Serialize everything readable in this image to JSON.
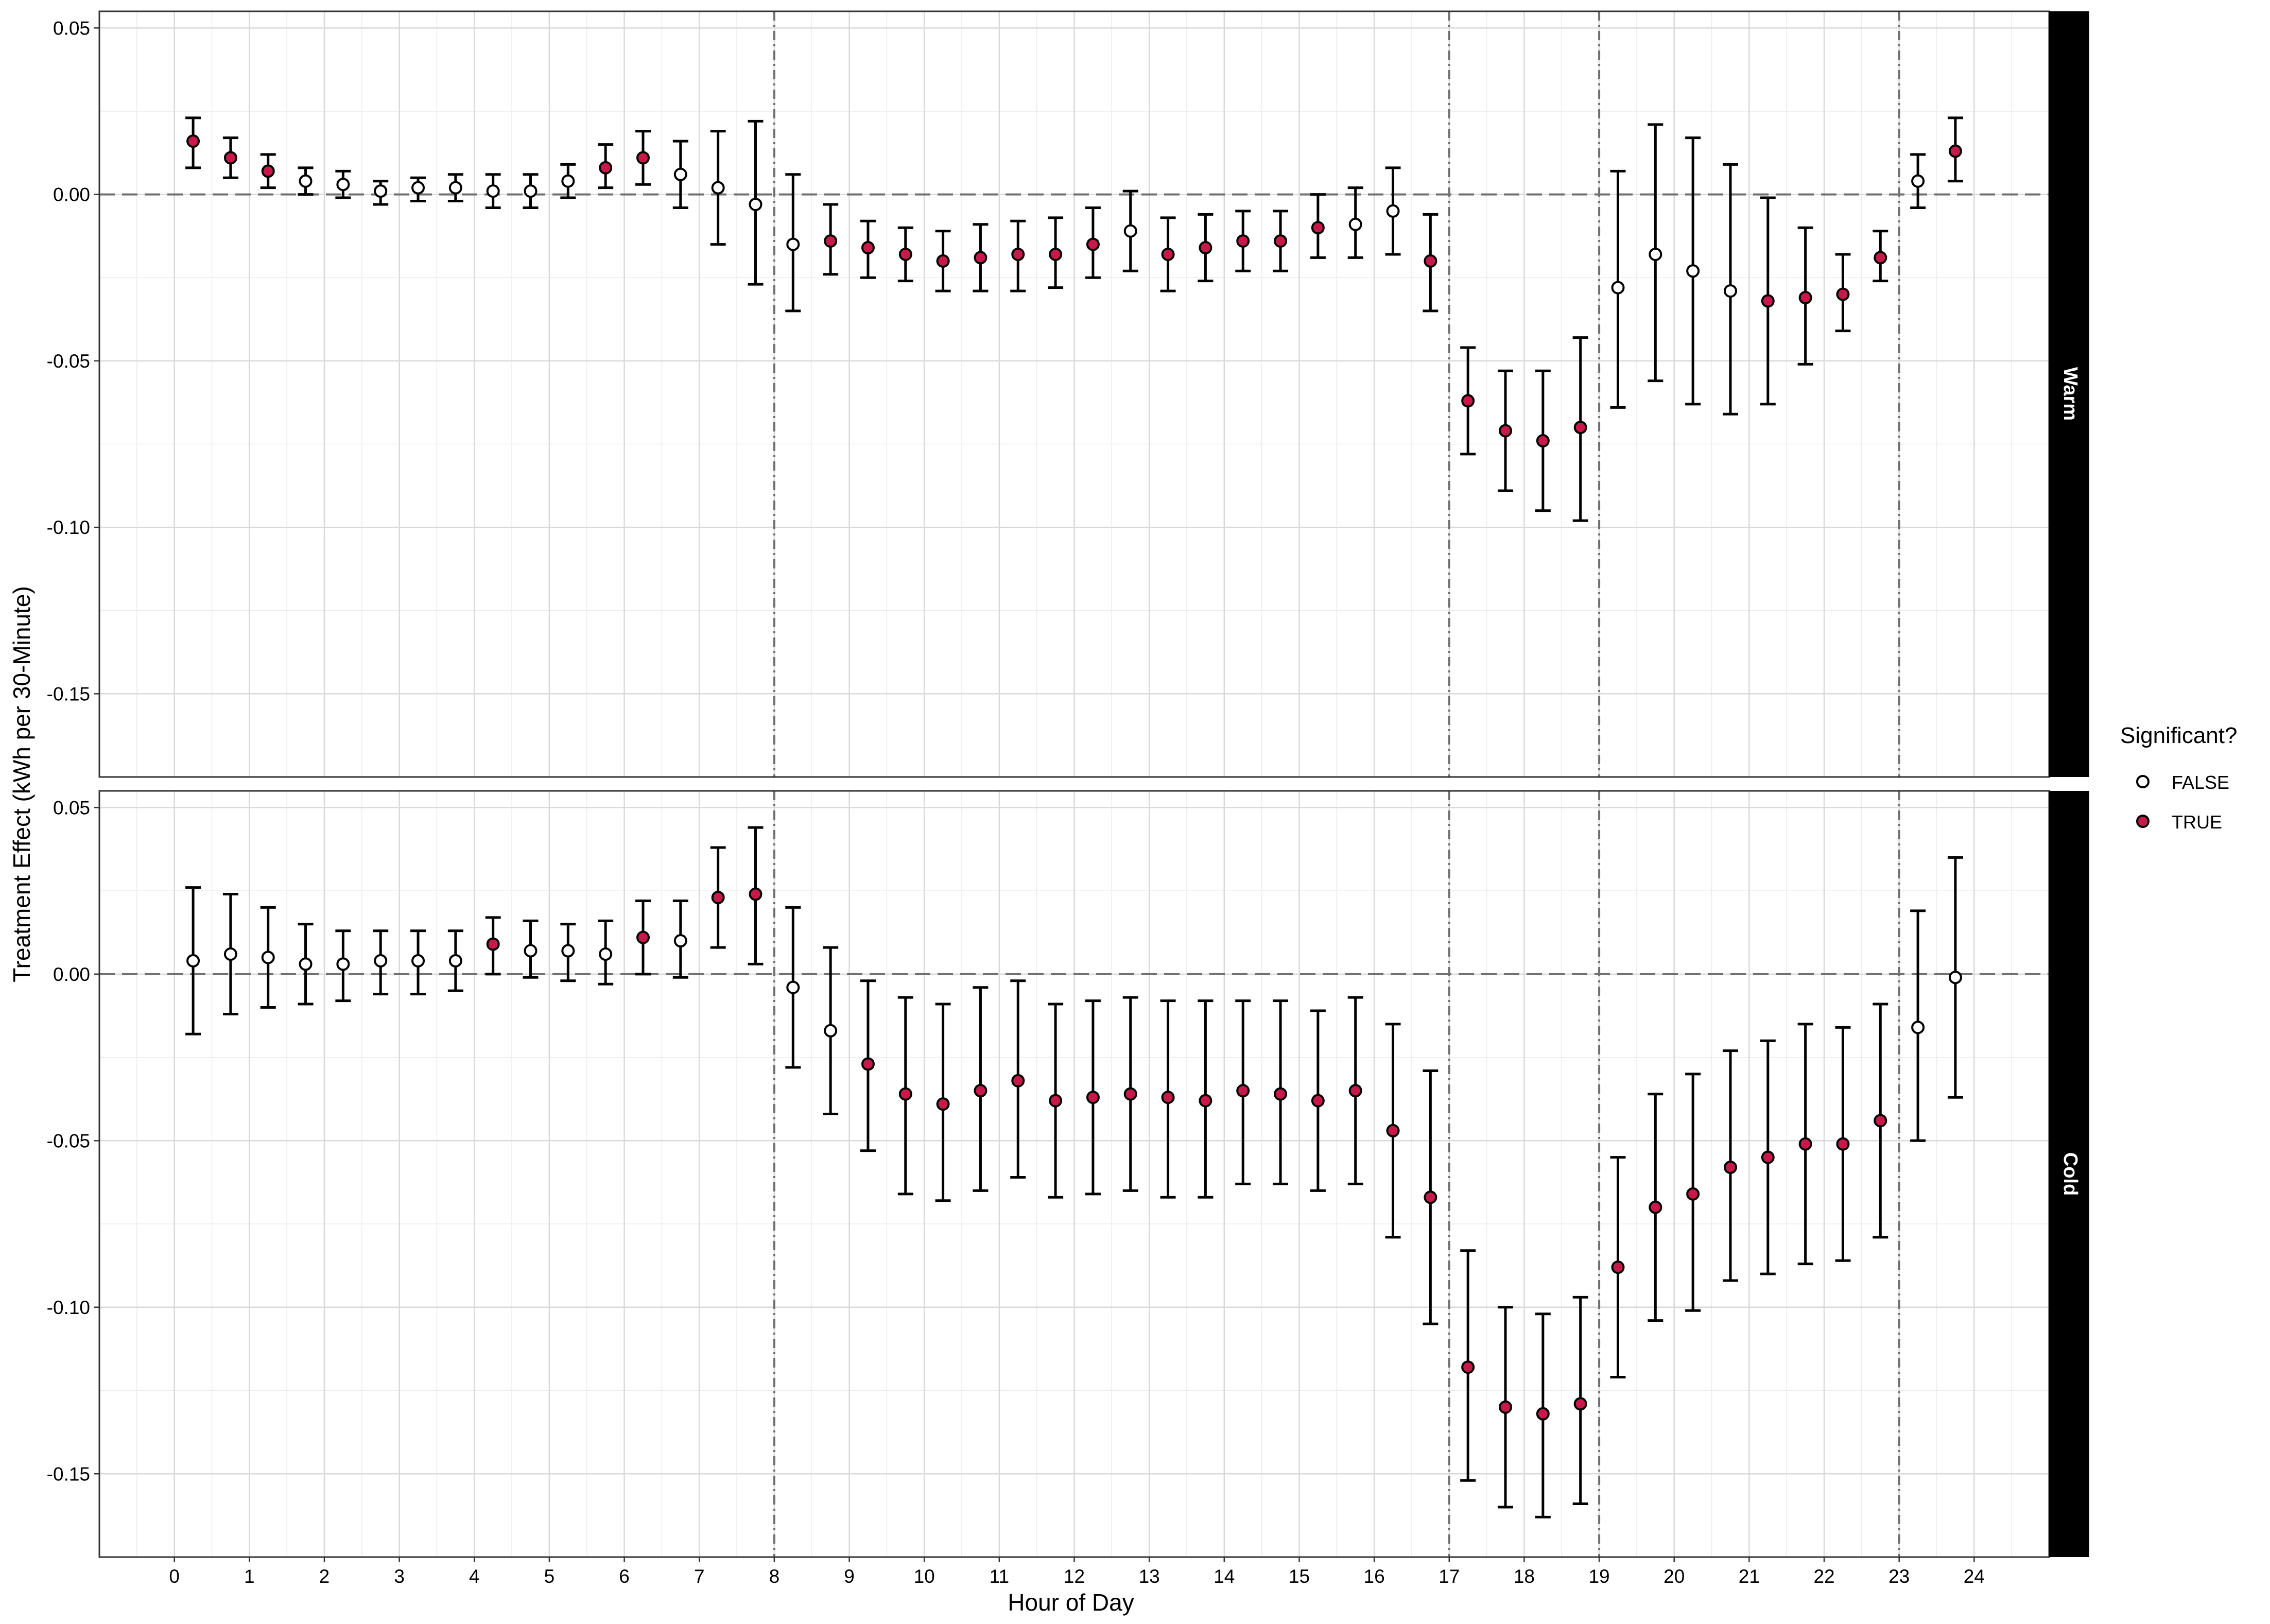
{
  "chart_data": {
    "type": "scatter",
    "subtype": "point-range (faceted)",
    "xlabel": "Hour of Day",
    "ylabel": "Treatment Effect  (kWh per 30-Minute)",
    "x_ticks": [
      "0",
      "1",
      "2",
      "3",
      "4",
      "5",
      "6",
      "7",
      "8",
      "9",
      "10",
      "11",
      "12",
      "13",
      "14",
      "15",
      "16",
      "17",
      "18",
      "19",
      "20",
      "21",
      "22",
      "23",
      "24"
    ],
    "xlim": [
      -1,
      25
    ],
    "ylim": [
      -0.175,
      0.055
    ],
    "y_ticks": [
      0.05,
      0.0,
      -0.05,
      -0.1,
      -0.15
    ],
    "y_tick_labels": [
      "0.05",
      "0.00",
      "-0.05",
      "-0.10",
      "-0.15"
    ],
    "reference_hline": 0,
    "reference_vlines": [
      8,
      17,
      19,
      23
    ],
    "grid": true,
    "legend": {
      "title": "Significant?",
      "position": "right",
      "items": [
        {
          "label": "FALSE",
          "fill": "#ffffff"
        },
        {
          "label": "TRUE",
          "fill": "#c8194a"
        }
      ]
    },
    "colors": {
      "significant": "#c8194a",
      "not_significant": "#ffffff",
      "strip": "#000000",
      "reference_line": "#707070"
    },
    "panels": [
      {
        "strip_label": "Warm",
        "points": [
          {
            "x": 0.25,
            "y": 0.016,
            "lo": 0.008,
            "hi": 0.023,
            "sig": true
          },
          {
            "x": 0.75,
            "y": 0.011,
            "lo": 0.005,
            "hi": 0.017,
            "sig": true
          },
          {
            "x": 1.25,
            "y": 0.007,
            "lo": 0.002,
            "hi": 0.012,
            "sig": true
          },
          {
            "x": 1.75,
            "y": 0.004,
            "lo": 0.0,
            "hi": 0.008,
            "sig": false
          },
          {
            "x": 2.25,
            "y": 0.003,
            "lo": -0.001,
            "hi": 0.007,
            "sig": false
          },
          {
            "x": 2.75,
            "y": 0.001,
            "lo": -0.003,
            "hi": 0.004,
            "sig": false
          },
          {
            "x": 3.25,
            "y": 0.002,
            "lo": -0.002,
            "hi": 0.005,
            "sig": false
          },
          {
            "x": 3.75,
            "y": 0.002,
            "lo": -0.002,
            "hi": 0.006,
            "sig": false
          },
          {
            "x": 4.25,
            "y": 0.001,
            "lo": -0.004,
            "hi": 0.006,
            "sig": false
          },
          {
            "x": 4.75,
            "y": 0.001,
            "lo": -0.004,
            "hi": 0.006,
            "sig": false
          },
          {
            "x": 5.25,
            "y": 0.004,
            "lo": -0.001,
            "hi": 0.009,
            "sig": false
          },
          {
            "x": 5.75,
            "y": 0.008,
            "lo": 0.002,
            "hi": 0.015,
            "sig": true
          },
          {
            "x": 6.25,
            "y": 0.011,
            "lo": 0.003,
            "hi": 0.019,
            "sig": true
          },
          {
            "x": 6.75,
            "y": 0.006,
            "lo": -0.004,
            "hi": 0.016,
            "sig": false
          },
          {
            "x": 7.25,
            "y": 0.002,
            "lo": -0.015,
            "hi": 0.019,
            "sig": false
          },
          {
            "x": 7.75,
            "y": -0.003,
            "lo": -0.027,
            "hi": 0.022,
            "sig": false
          },
          {
            "x": 8.25,
            "y": -0.015,
            "lo": -0.035,
            "hi": 0.006,
            "sig": false
          },
          {
            "x": 8.75,
            "y": -0.014,
            "lo": -0.024,
            "hi": -0.003,
            "sig": true
          },
          {
            "x": 9.25,
            "y": -0.016,
            "lo": -0.025,
            "hi": -0.008,
            "sig": true
          },
          {
            "x": 9.75,
            "y": -0.018,
            "lo": -0.026,
            "hi": -0.01,
            "sig": true
          },
          {
            "x": 10.25,
            "y": -0.02,
            "lo": -0.029,
            "hi": -0.011,
            "sig": true
          },
          {
            "x": 10.75,
            "y": -0.019,
            "lo": -0.029,
            "hi": -0.009,
            "sig": true
          },
          {
            "x": 11.25,
            "y": -0.018,
            "lo": -0.029,
            "hi": -0.008,
            "sig": true
          },
          {
            "x": 11.75,
            "y": -0.018,
            "lo": -0.028,
            "hi": -0.007,
            "sig": true
          },
          {
            "x": 12.25,
            "y": -0.015,
            "lo": -0.025,
            "hi": -0.004,
            "sig": true
          },
          {
            "x": 12.75,
            "y": -0.011,
            "lo": -0.023,
            "hi": 0.001,
            "sig": false
          },
          {
            "x": 13.25,
            "y": -0.018,
            "lo": -0.029,
            "hi": -0.007,
            "sig": true
          },
          {
            "x": 13.75,
            "y": -0.016,
            "lo": -0.026,
            "hi": -0.006,
            "sig": true
          },
          {
            "x": 14.25,
            "y": -0.014,
            "lo": -0.023,
            "hi": -0.005,
            "sig": true
          },
          {
            "x": 14.75,
            "y": -0.014,
            "lo": -0.023,
            "hi": -0.005,
            "sig": true
          },
          {
            "x": 15.25,
            "y": -0.01,
            "lo": -0.019,
            "hi": 0.0,
            "sig": true
          },
          {
            "x": 15.75,
            "y": -0.009,
            "lo": -0.019,
            "hi": 0.002,
            "sig": false
          },
          {
            "x": 16.25,
            "y": -0.005,
            "lo": -0.018,
            "hi": 0.008,
            "sig": false
          },
          {
            "x": 16.75,
            "y": -0.02,
            "lo": -0.035,
            "hi": -0.006,
            "sig": true
          },
          {
            "x": 17.25,
            "y": -0.062,
            "lo": -0.078,
            "hi": -0.046,
            "sig": true
          },
          {
            "x": 17.75,
            "y": -0.071,
            "lo": -0.089,
            "hi": -0.053,
            "sig": true
          },
          {
            "x": 18.25,
            "y": -0.074,
            "lo": -0.095,
            "hi": -0.053,
            "sig": true
          },
          {
            "x": 18.75,
            "y": -0.07,
            "lo": -0.098,
            "hi": -0.043,
            "sig": true
          },
          {
            "x": 19.25,
            "y": -0.028,
            "lo": -0.064,
            "hi": 0.007,
            "sig": false
          },
          {
            "x": 19.75,
            "y": -0.018,
            "lo": -0.056,
            "hi": 0.021,
            "sig": false
          },
          {
            "x": 20.25,
            "y": -0.023,
            "lo": -0.063,
            "hi": 0.017,
            "sig": false
          },
          {
            "x": 20.75,
            "y": -0.029,
            "lo": -0.066,
            "hi": 0.009,
            "sig": false
          },
          {
            "x": 21.25,
            "y": -0.032,
            "lo": -0.063,
            "hi": -0.001,
            "sig": true
          },
          {
            "x": 21.75,
            "y": -0.031,
            "lo": -0.051,
            "hi": -0.01,
            "sig": true
          },
          {
            "x": 22.25,
            "y": -0.03,
            "lo": -0.041,
            "hi": -0.018,
            "sig": true
          },
          {
            "x": 22.75,
            "y": -0.019,
            "lo": -0.026,
            "hi": -0.011,
            "sig": true
          },
          {
            "x": 23.25,
            "y": 0.004,
            "lo": -0.004,
            "hi": 0.012,
            "sig": false
          },
          {
            "x": 23.75,
            "y": 0.013,
            "lo": 0.004,
            "hi": 0.023,
            "sig": true
          }
        ]
      },
      {
        "strip_label": "Cold",
        "points": [
          {
            "x": 0.25,
            "y": 0.004,
            "lo": -0.018,
            "hi": 0.026,
            "sig": false
          },
          {
            "x": 0.75,
            "y": 0.006,
            "lo": -0.012,
            "hi": 0.024,
            "sig": false
          },
          {
            "x": 1.25,
            "y": 0.005,
            "lo": -0.01,
            "hi": 0.02,
            "sig": false
          },
          {
            "x": 1.75,
            "y": 0.003,
            "lo": -0.009,
            "hi": 0.015,
            "sig": false
          },
          {
            "x": 2.25,
            "y": 0.003,
            "lo": -0.008,
            "hi": 0.013,
            "sig": false
          },
          {
            "x": 2.75,
            "y": 0.004,
            "lo": -0.006,
            "hi": 0.013,
            "sig": false
          },
          {
            "x": 3.25,
            "y": 0.004,
            "lo": -0.006,
            "hi": 0.013,
            "sig": false
          },
          {
            "x": 3.75,
            "y": 0.004,
            "lo": -0.005,
            "hi": 0.013,
            "sig": false
          },
          {
            "x": 4.25,
            "y": 0.009,
            "lo": 0.0,
            "hi": 0.017,
            "sig": true
          },
          {
            "x": 4.75,
            "y": 0.007,
            "lo": -0.001,
            "hi": 0.016,
            "sig": false
          },
          {
            "x": 5.25,
            "y": 0.007,
            "lo": -0.002,
            "hi": 0.015,
            "sig": false
          },
          {
            "x": 5.75,
            "y": 0.006,
            "lo": -0.003,
            "hi": 0.016,
            "sig": false
          },
          {
            "x": 6.25,
            "y": 0.011,
            "lo": 0.0,
            "hi": 0.022,
            "sig": true
          },
          {
            "x": 6.75,
            "y": 0.01,
            "lo": -0.001,
            "hi": 0.022,
            "sig": false
          },
          {
            "x": 7.25,
            "y": 0.023,
            "lo": 0.008,
            "hi": 0.038,
            "sig": true
          },
          {
            "x": 7.75,
            "y": 0.024,
            "lo": 0.003,
            "hi": 0.044,
            "sig": true
          },
          {
            "x": 8.25,
            "y": -0.004,
            "lo": -0.028,
            "hi": 0.02,
            "sig": false
          },
          {
            "x": 8.75,
            "y": -0.017,
            "lo": -0.042,
            "hi": 0.008,
            "sig": false
          },
          {
            "x": 9.25,
            "y": -0.027,
            "lo": -0.053,
            "hi": -0.002,
            "sig": true
          },
          {
            "x": 9.75,
            "y": -0.036,
            "lo": -0.066,
            "hi": -0.007,
            "sig": true
          },
          {
            "x": 10.25,
            "y": -0.039,
            "lo": -0.068,
            "hi": -0.009,
            "sig": true
          },
          {
            "x": 10.75,
            "y": -0.035,
            "lo": -0.065,
            "hi": -0.004,
            "sig": true
          },
          {
            "x": 11.25,
            "y": -0.032,
            "lo": -0.061,
            "hi": -0.002,
            "sig": true
          },
          {
            "x": 11.75,
            "y": -0.038,
            "lo": -0.067,
            "hi": -0.009,
            "sig": true
          },
          {
            "x": 12.25,
            "y": -0.037,
            "lo": -0.066,
            "hi": -0.008,
            "sig": true
          },
          {
            "x": 12.75,
            "y": -0.036,
            "lo": -0.065,
            "hi": -0.007,
            "sig": true
          },
          {
            "x": 13.25,
            "y": -0.037,
            "lo": -0.067,
            "hi": -0.008,
            "sig": true
          },
          {
            "x": 13.75,
            "y": -0.038,
            "lo": -0.067,
            "hi": -0.008,
            "sig": true
          },
          {
            "x": 14.25,
            "y": -0.035,
            "lo": -0.063,
            "hi": -0.008,
            "sig": true
          },
          {
            "x": 14.75,
            "y": -0.036,
            "lo": -0.063,
            "hi": -0.008,
            "sig": true
          },
          {
            "x": 15.25,
            "y": -0.038,
            "lo": -0.065,
            "hi": -0.011,
            "sig": true
          },
          {
            "x": 15.75,
            "y": -0.035,
            "lo": -0.063,
            "hi": -0.007,
            "sig": true
          },
          {
            "x": 16.25,
            "y": -0.047,
            "lo": -0.079,
            "hi": -0.015,
            "sig": true
          },
          {
            "x": 16.75,
            "y": -0.067,
            "lo": -0.105,
            "hi": -0.029,
            "sig": true
          },
          {
            "x": 17.25,
            "y": -0.118,
            "lo": -0.152,
            "hi": -0.083,
            "sig": true
          },
          {
            "x": 17.75,
            "y": -0.13,
            "lo": -0.16,
            "hi": -0.1,
            "sig": true
          },
          {
            "x": 18.25,
            "y": -0.132,
            "lo": -0.163,
            "hi": -0.102,
            "sig": true
          },
          {
            "x": 18.75,
            "y": -0.129,
            "lo": -0.159,
            "hi": -0.097,
            "sig": true
          },
          {
            "x": 19.25,
            "y": -0.088,
            "lo": -0.121,
            "hi": -0.055,
            "sig": true
          },
          {
            "x": 19.75,
            "y": -0.07,
            "lo": -0.104,
            "hi": -0.036,
            "sig": true
          },
          {
            "x": 20.25,
            "y": -0.066,
            "lo": -0.101,
            "hi": -0.03,
            "sig": true
          },
          {
            "x": 20.75,
            "y": -0.058,
            "lo": -0.092,
            "hi": -0.023,
            "sig": true
          },
          {
            "x": 21.25,
            "y": -0.055,
            "lo": -0.09,
            "hi": -0.02,
            "sig": true
          },
          {
            "x": 21.75,
            "y": -0.051,
            "lo": -0.087,
            "hi": -0.015,
            "sig": true
          },
          {
            "x": 22.25,
            "y": -0.051,
            "lo": -0.086,
            "hi": -0.016,
            "sig": true
          },
          {
            "x": 22.75,
            "y": -0.044,
            "lo": -0.079,
            "hi": -0.009,
            "sig": true
          },
          {
            "x": 23.25,
            "y": -0.016,
            "lo": -0.05,
            "hi": 0.019,
            "sig": false
          },
          {
            "x": 23.75,
            "y": -0.001,
            "lo": -0.037,
            "hi": 0.035,
            "sig": false
          }
        ]
      }
    ]
  }
}
